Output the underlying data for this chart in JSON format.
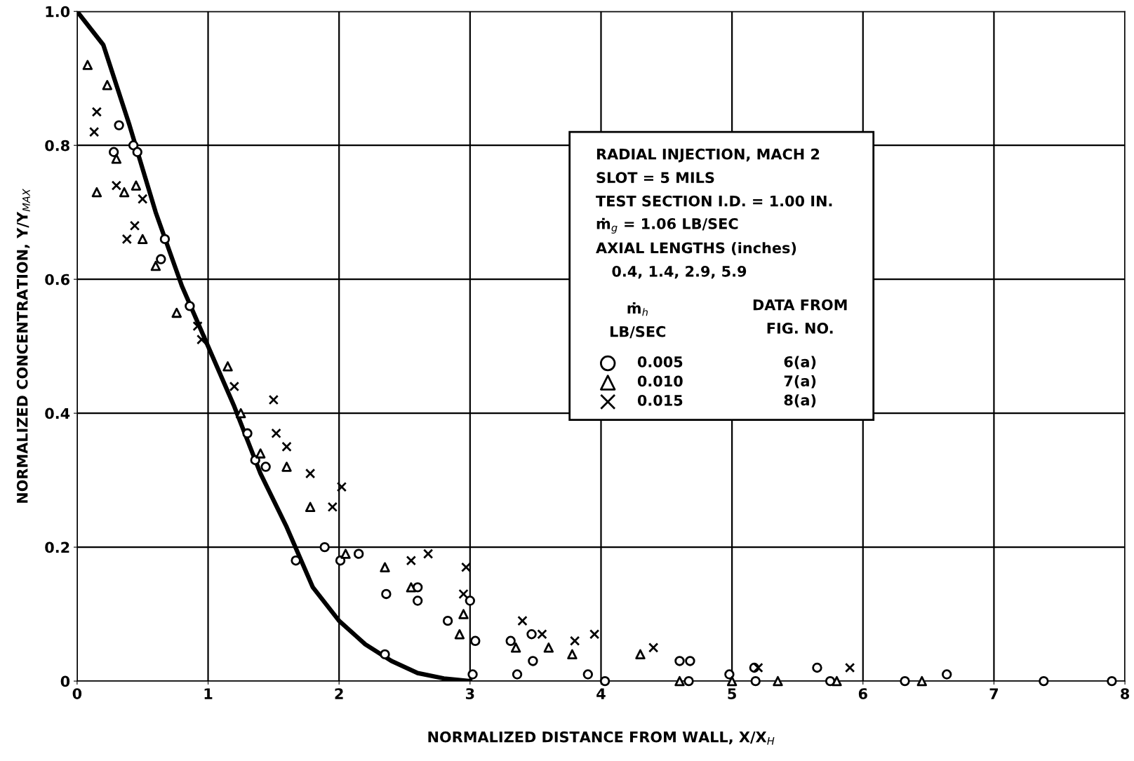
{
  "chart_data": {
    "type": "scatter",
    "xlabel": "NORMALIZED DISTANCE FROM WALL, X/X$_{H}$",
    "ylabel": "NORMALIZED CONCENTRATION, Y/Y$_{MAX}$",
    "xlim": [
      0,
      8
    ],
    "ylim": [
      0,
      1.0
    ],
    "xticks": [
      0,
      1,
      2,
      3,
      4,
      5,
      6,
      7,
      8
    ],
    "yticks": [
      0,
      0.2,
      0.4,
      0.6,
      0.8,
      {
        "value": 1.0,
        "label": "1.0"
      }
    ],
    "grid": true,
    "legend": "right",
    "annotations": [
      "RADIAL INJECTION, MACH 2",
      "SLOT = 5 MILS",
      "TEST SECTION I.D. = 1.00 IN.",
      "ṁ$_{g}$ = 1.06 LB/SEC",
      "AXIAL LENGTHS (inches)",
      "0.4, 1.4, 2.9, 5.9",
      "ṁ$_{h}$",
      "LB/SEC",
      "DATA FROM",
      "FIG. NO.",
      "6(a)",
      "7(a)",
      "8(a)"
    ],
    "series": [
      {
        "name": "0.005",
        "color": "#000000",
        "marker": "circle",
        "x": [
          0.32,
          0.28,
          0.43,
          0.46,
          0.67,
          0.64,
          0.86,
          1.3,
          1.36,
          1.44,
          1.67,
          1.89,
          2.01,
          2.15,
          2.36,
          2.35,
          2.6,
          2.6,
          2.83,
          3.04,
          3.02,
          3.31,
          3.36,
          3.47,
          3.48,
          3.9,
          4.03,
          4.6,
          4.68,
          4.67,
          5.17,
          5.18,
          5.65,
          5.75,
          6.32,
          6.64,
          7.38,
          7.9,
          4.98,
          3.0
        ],
        "values": [
          0.83,
          0.79,
          0.8,
          0.79,
          0.66,
          0.63,
          0.56,
          0.37,
          0.33,
          0.32,
          0.18,
          0.2,
          0.18,
          0.19,
          0.13,
          0.04,
          0.14,
          0.12,
          0.09,
          0.06,
          0.01,
          0.06,
          0.01,
          0.07,
          0.03,
          0.01,
          0.0,
          0.03,
          0.03,
          0.0,
          0.02,
          0.0,
          0.02,
          0.0,
          0.0,
          0.01,
          0.0,
          0.0,
          0.01,
          0.12
        ]
      },
      {
        "name": "0.010",
        "color": "#000000",
        "marker": "triangle",
        "x": [
          0.15,
          0.36,
          0.45,
          0.6,
          0.76,
          1.15,
          1.25,
          1.4,
          1.6,
          1.78,
          2.05,
          2.35,
          2.55,
          2.95,
          2.92,
          3.35,
          3.6,
          3.78,
          4.3,
          4.6,
          5.0,
          5.35,
          5.8,
          6.45,
          0.3,
          0.5,
          0.08,
          0.23
        ],
        "values": [
          0.73,
          0.73,
          0.74,
          0.62,
          0.55,
          0.47,
          0.4,
          0.34,
          0.32,
          0.26,
          0.19,
          0.17,
          0.14,
          0.1,
          0.07,
          0.05,
          0.05,
          0.04,
          0.04,
          0.0,
          0.0,
          0.0,
          0.0,
          0.0,
          0.78,
          0.66,
          0.92,
          0.89
        ]
      },
      {
        "name": "0.015",
        "color": "#000000",
        "marker": "cross",
        "x": [
          0.13,
          0.15,
          0.3,
          0.38,
          0.44,
          0.5,
          0.92,
          1.2,
          1.5,
          1.52,
          1.6,
          1.78,
          1.95,
          2.02,
          2.55,
          2.68,
          2.97,
          2.95,
          3.4,
          3.55,
          3.8,
          3.95,
          4.4,
          5.2,
          5.9,
          0.95
        ],
        "values": [
          0.82,
          0.85,
          0.74,
          0.66,
          0.68,
          0.72,
          0.53,
          0.44,
          0.42,
          0.37,
          0.35,
          0.31,
          0.26,
          0.29,
          0.18,
          0.19,
          0.17,
          0.13,
          0.09,
          0.07,
          0.06,
          0.07,
          0.05,
          0.02,
          0.02,
          0.51
        ]
      },
      {
        "type": "line",
        "color": "#000000",
        "line_style": "solid",
        "marker": "none",
        "x": [
          0,
          0.2,
          0.4,
          0.6,
          0.8,
          1.0,
          1.2,
          1.4,
          1.6,
          1.8,
          2.0,
          2.2,
          2.4,
          2.6,
          2.8,
          3.0
        ],
        "values": [
          1.0,
          0.95,
          0.83,
          0.7,
          0.59,
          0.5,
          0.41,
          0.31,
          0.23,
          0.14,
          0.09,
          0.055,
          0.03,
          0.012,
          0.004,
          0.0
        ]
      }
    ]
  }
}
